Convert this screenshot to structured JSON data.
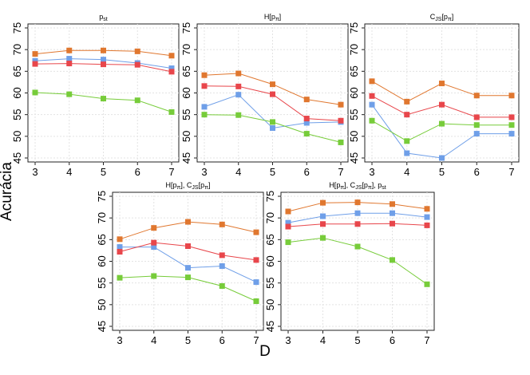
{
  "chart_data": {
    "type": "line",
    "ylabel": "Acurácia",
    "xlabel": "D",
    "series_colors": [
      "#e0772f",
      "#6f9fe8",
      "#e8464b",
      "#77cc3a"
    ],
    "panels": [
      {
        "title": [
          "p",
          "st",
          ""
        ],
        "x": [
          3,
          4,
          5,
          6,
          7
        ],
        "ylim": [
          45,
          75
        ],
        "yticks": [
          45,
          50,
          55,
          60,
          65,
          70,
          75
        ],
        "series": [
          {
            "color": "#e0772f",
            "values": [
              69.0,
              69.8,
              69.8,
              69.6,
              68.6
            ]
          },
          {
            "color": "#6f9fe8",
            "values": [
              67.4,
              67.9,
              67.7,
              66.9,
              65.7
            ]
          },
          {
            "color": "#e8464b",
            "values": [
              66.7,
              66.8,
              66.6,
              66.5,
              64.9
            ]
          },
          {
            "color": "#77cc3a",
            "values": [
              60.1,
              59.7,
              58.7,
              58.3,
              55.6
            ]
          }
        ]
      },
      {
        "title": [
          "H[p",
          "π",
          "]"
        ],
        "x": [
          3,
          4,
          5,
          6,
          7
        ],
        "ylim": [
          45,
          75
        ],
        "yticks": [
          45,
          50,
          55,
          60,
          65,
          70,
          75
        ],
        "series": [
          {
            "color": "#e0772f",
            "values": [
              64.1,
              64.5,
              62.0,
              58.5,
              57.3
            ]
          },
          {
            "color": "#6f9fe8",
            "values": [
              56.8,
              59.6,
              51.9,
              53.1,
              53.3
            ]
          },
          {
            "color": "#e8464b",
            "values": [
              61.6,
              61.5,
              59.7,
              54.1,
              53.6
            ]
          },
          {
            "color": "#77cc3a",
            "values": [
              55.0,
              54.9,
              53.3,
              50.6,
              48.6
            ]
          }
        ]
      },
      {
        "title": [
          "C",
          "JS",
          "[p",
          "π",
          "]"
        ],
        "x": [
          3,
          4,
          5,
          6,
          7
        ],
        "ylim": [
          45,
          75
        ],
        "yticks": [
          45,
          50,
          55,
          60,
          65,
          70,
          75
        ],
        "series": [
          {
            "color": "#e0772f",
            "values": [
              62.7,
              58.0,
              62.2,
              59.4,
              59.4
            ]
          },
          {
            "color": "#6f9fe8",
            "values": [
              57.3,
              46.1,
              45.0,
              50.6,
              50.6
            ]
          },
          {
            "color": "#e8464b",
            "values": [
              59.3,
              55.0,
              57.3,
              54.4,
              54.4
            ]
          },
          {
            "color": "#77cc3a",
            "values": [
              53.6,
              48.9,
              52.9,
              52.6,
              52.6
            ]
          }
        ]
      },
      {
        "title": [
          "H[p",
          "π",
          "], C",
          "JS",
          "[p",
          "π",
          "]"
        ],
        "x": [
          3,
          4,
          5,
          6,
          7
        ],
        "ylim": [
          45,
          75
        ],
        "yticks": [
          45,
          50,
          55,
          60,
          65,
          70,
          75
        ],
        "series": [
          {
            "color": "#e0772f",
            "values": [
              65.1,
              67.7,
              69.1,
              68.5,
              66.7
            ]
          },
          {
            "color": "#6f9fe8",
            "values": [
              63.3,
              63.3,
              58.5,
              58.9,
              55.2
            ]
          },
          {
            "color": "#e8464b",
            "values": [
              62.2,
              64.3,
              63.5,
              61.4,
              60.3
            ]
          },
          {
            "color": "#77cc3a",
            "values": [
              56.2,
              56.6,
              56.3,
              54.3,
              50.8
            ]
          }
        ]
      },
      {
        "title": [
          "H[p",
          "π",
          "], C",
          "JS",
          "[p",
          "π",
          "], p",
          "st",
          ""
        ],
        "x": [
          3,
          4,
          5,
          6,
          7
        ],
        "ylim": [
          45,
          75
        ],
        "yticks": [
          45,
          50,
          55,
          60,
          65,
          70,
          75
        ],
        "series": [
          {
            "color": "#e0772f",
            "values": [
              71.5,
              73.5,
              73.6,
              73.2,
              72.1
            ]
          },
          {
            "color": "#6f9fe8",
            "values": [
              68.9,
              70.4,
              71.1,
              71.1,
              70.2
            ]
          },
          {
            "color": "#e8464b",
            "values": [
              68.0,
              68.6,
              68.6,
              68.7,
              68.3
            ]
          },
          {
            "color": "#77cc3a",
            "values": [
              64.4,
              65.4,
              63.4,
              60.3,
              54.7
            ]
          }
        ]
      }
    ]
  }
}
